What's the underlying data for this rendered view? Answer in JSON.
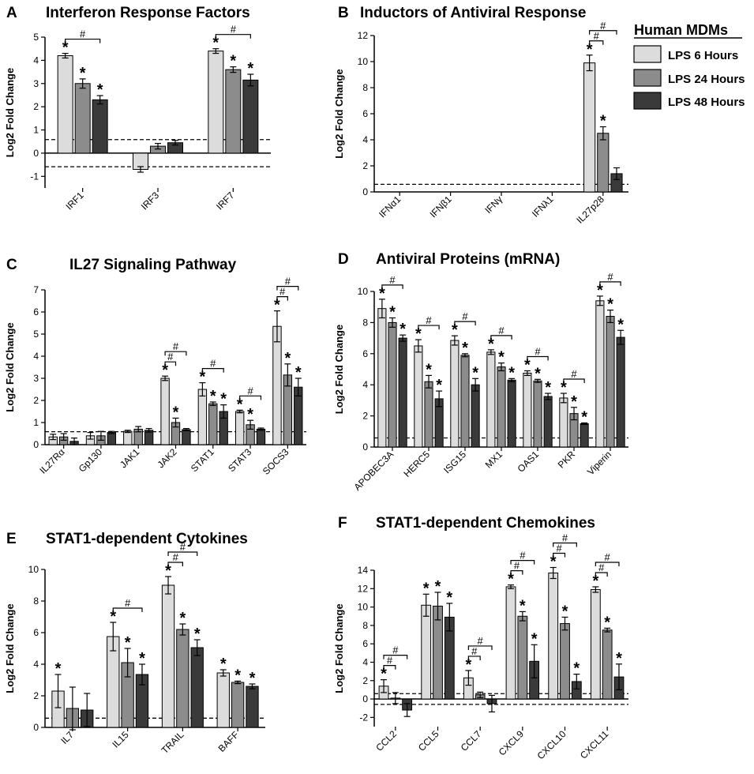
{
  "figure": {
    "legend": {
      "title": "Human MDMs",
      "entries": [
        {
          "label": "LPS 6 Hours",
          "color": "#dcdcdc"
        },
        {
          "label": "LPS 24 Hours",
          "color": "#8c8c8c"
        },
        {
          "label": "LPS 48 Hours",
          "color": "#3a3a3a"
        }
      ]
    },
    "marker_star": "*",
    "marker_hash": "#"
  },
  "chart_data": [
    {
      "type": "bar",
      "letter": "A",
      "title": "Interferon Response Factors",
      "ylabel": "Log2 Fold Change",
      "ylim": [
        -1.5,
        5
      ],
      "yticks": [
        "-1",
        "0",
        "1",
        "2",
        "3",
        "4",
        "5"
      ],
      "ref_lines": [
        0.585,
        -0.585
      ],
      "categories": [
        "IRF1",
        "IRF3",
        "IRF7"
      ],
      "series": [
        {
          "name": "LPS 6 Hours",
          "values": [
            4.2,
            -0.7,
            4.4
          ],
          "errors": [
            0.1,
            0.12,
            0.1
          ],
          "stars": [
            true,
            false,
            true
          ]
        },
        {
          "name": "LPS 24 Hours",
          "values": [
            3.0,
            0.3,
            3.6
          ],
          "errors": [
            0.2,
            0.12,
            0.12
          ],
          "stars": [
            true,
            false,
            true
          ]
        },
        {
          "name": "LPS 48 Hours",
          "values": [
            2.3,
            0.45,
            3.15
          ],
          "errors": [
            0.18,
            0.1,
            0.25
          ],
          "stars": [
            true,
            false,
            true
          ]
        }
      ],
      "hash_brackets": [
        {
          "category": 0,
          "from": 0,
          "to": 2,
          "level": 0
        },
        {
          "category": 2,
          "from": 0,
          "to": 2,
          "level": 0
        }
      ]
    },
    {
      "type": "bar",
      "letter": "B",
      "title": "Inductors of Antiviral Response",
      "ylabel": "Log2 Fold Change",
      "ylim": [
        0,
        12
      ],
      "yticks": [
        "0",
        "2",
        "4",
        "6",
        "8",
        "10",
        "12"
      ],
      "ref_lines": [
        0.585
      ],
      "categories": [
        "IFNα1",
        "IFNβ1",
        "IFNγ",
        "IFNλ1",
        "IL27p28"
      ],
      "series": [
        {
          "name": "LPS 6 Hours",
          "values": [
            0,
            0,
            0,
            0,
            9.9
          ],
          "errors": [
            0,
            0,
            0,
            0,
            0.6
          ],
          "stars": [
            false,
            false,
            false,
            false,
            true
          ]
        },
        {
          "name": "LPS 24 Hours",
          "values": [
            0,
            0,
            0,
            0,
            4.5
          ],
          "errors": [
            0,
            0,
            0,
            0,
            0.5
          ],
          "stars": [
            false,
            false,
            false,
            false,
            true
          ]
        },
        {
          "name": "LPS 48 Hours",
          "values": [
            0,
            0,
            0,
            0,
            1.4
          ],
          "errors": [
            0,
            0,
            0,
            0,
            0.45
          ],
          "stars": [
            false,
            false,
            false,
            false,
            false
          ]
        }
      ],
      "hash_brackets": [
        {
          "category": 4,
          "from": 0,
          "to": 1,
          "level": 0
        },
        {
          "category": 4,
          "from": 0,
          "to": 2,
          "level": 1
        }
      ]
    },
    {
      "type": "bar",
      "letter": "C",
      "title": "IL27 Signaling Pathway",
      "ylabel": "Log2 Fold Change",
      "ylim": [
        0,
        7
      ],
      "yticks": [
        "0",
        "1",
        "2",
        "3",
        "4",
        "5",
        "6",
        "7"
      ],
      "ref_lines": [
        0.585
      ],
      "categories": [
        "IL27Rα",
        "Gp130",
        "JAK1",
        "JAK2",
        "STAT1",
        "STAT3",
        "SOCS3"
      ],
      "series": [
        {
          "name": "LPS 6 Hours",
          "values": [
            0.35,
            0.4,
            0.6,
            3.0,
            2.5,
            1.5,
            5.35
          ],
          "errors": [
            0.12,
            0.15,
            0.05,
            0.1,
            0.3,
            0.06,
            0.7
          ],
          "stars": [
            false,
            false,
            false,
            true,
            true,
            true,
            true
          ]
        },
        {
          "name": "LPS 24 Hours",
          "values": [
            0.35,
            0.4,
            0.7,
            1.0,
            1.85,
            0.9,
            3.15
          ],
          "errors": [
            0.15,
            0.2,
            0.12,
            0.2,
            0.08,
            0.2,
            0.5
          ],
          "stars": [
            false,
            false,
            false,
            true,
            true,
            true,
            true
          ]
        },
        {
          "name": "LPS 48 Hours",
          "values": [
            0.15,
            0.55,
            0.65,
            0.68,
            1.5,
            0.7,
            2.6
          ],
          "errors": [
            0.15,
            0.05,
            0.08,
            0.05,
            0.3,
            0.05,
            0.4
          ],
          "stars": [
            false,
            false,
            false,
            false,
            true,
            false,
            true
          ]
        }
      ],
      "hash_brackets": [
        {
          "category": 3,
          "from": 0,
          "to": 1,
          "level": 0
        },
        {
          "category": 3,
          "from": 0,
          "to": 2,
          "level": 1
        },
        {
          "category": 4,
          "from": 0,
          "to": 2,
          "level": 0
        },
        {
          "category": 5,
          "from": 0,
          "to": 2,
          "level": 0
        },
        {
          "category": 6,
          "from": 0,
          "to": 1,
          "level": 0
        },
        {
          "category": 6,
          "from": 0,
          "to": 2,
          "level": 1
        }
      ]
    },
    {
      "type": "bar",
      "letter": "D",
      "title": "Antiviral Proteins (mRNA)",
      "ylabel": "Log2 Fold Change",
      "ylim": [
        0,
        10
      ],
      "yticks": [
        "0",
        "2",
        "4",
        "6",
        "8",
        "10"
      ],
      "ref_lines": [
        0.585
      ],
      "categories": [
        "APOBEC3A",
        "HERC5",
        "ISG15",
        "MX1",
        "OAS1",
        "PKR",
        "Viperin"
      ],
      "series": [
        {
          "name": "LPS 6 Hours",
          "values": [
            8.9,
            6.5,
            6.85,
            6.1,
            4.75,
            3.15,
            9.4
          ],
          "errors": [
            0.6,
            0.4,
            0.3,
            0.15,
            0.15,
            0.3,
            0.3
          ],
          "stars": [
            true,
            true,
            true,
            true,
            true,
            true,
            true
          ]
        },
        {
          "name": "LPS 24 Hours",
          "values": [
            8.0,
            4.2,
            5.9,
            5.15,
            4.25,
            2.15,
            8.4
          ],
          "errors": [
            0.3,
            0.4,
            0.1,
            0.25,
            0.1,
            0.4,
            0.4
          ],
          "stars": [
            true,
            true,
            true,
            true,
            true,
            true,
            true
          ]
        },
        {
          "name": "LPS 48 Hours",
          "values": [
            7.0,
            3.1,
            4.0,
            4.3,
            3.25,
            1.5,
            7.05
          ],
          "errors": [
            0.2,
            0.5,
            0.4,
            0.1,
            0.2,
            0.05,
            0.45
          ],
          "stars": [
            true,
            true,
            true,
            true,
            true,
            true,
            true
          ]
        }
      ],
      "hash_brackets": [
        {
          "category": 0,
          "from": 0,
          "to": 2,
          "level": 0
        },
        {
          "category": 1,
          "from": 0,
          "to": 2,
          "level": 0
        },
        {
          "category": 2,
          "from": 0,
          "to": 2,
          "level": 0
        },
        {
          "category": 3,
          "from": 0,
          "to": 2,
          "level": 0
        },
        {
          "category": 4,
          "from": 0,
          "to": 2,
          "level": 0
        },
        {
          "category": 5,
          "from": 0,
          "to": 2,
          "level": 0
        },
        {
          "category": 6,
          "from": 0,
          "to": 2,
          "level": 0
        }
      ]
    },
    {
      "type": "bar",
      "letter": "E",
      "title": "STAT1-dependent Cytokines",
      "ylabel": "Log2 Fold Change",
      "ylim": [
        0,
        10
      ],
      "yticks": [
        "0",
        "2",
        "4",
        "6",
        "8",
        "10"
      ],
      "ref_lines": [
        0.585
      ],
      "categories": [
        "IL7",
        "IL15",
        "TRAIL",
        "BAFF"
      ],
      "series": [
        {
          "name": "LPS 6 Hours",
          "values": [
            2.3,
            5.75,
            9.0,
            3.45
          ],
          "errors": [
            1.05,
            0.9,
            0.55,
            0.2
          ],
          "stars": [
            true,
            true,
            true,
            true
          ]
        },
        {
          "name": "LPS 24 Hours",
          "values": [
            1.2,
            4.1,
            6.2,
            2.85
          ],
          "errors": [
            1.35,
            0.9,
            0.35,
            0.08
          ],
          "stars": [
            false,
            true,
            true,
            true
          ]
        },
        {
          "name": "LPS 48 Hours",
          "values": [
            1.1,
            3.35,
            5.05,
            2.6
          ],
          "errors": [
            1.05,
            0.65,
            0.5,
            0.15
          ],
          "stars": [
            false,
            true,
            true,
            true
          ]
        }
      ],
      "hash_brackets": [
        {
          "category": 1,
          "from": 0,
          "to": 2,
          "level": 0
        },
        {
          "category": 2,
          "from": 0,
          "to": 1,
          "level": 0
        },
        {
          "category": 2,
          "from": 0,
          "to": 2,
          "level": 1
        }
      ]
    },
    {
      "type": "bar",
      "letter": "F",
      "title": "STAT1-dependent Chemokines",
      "ylabel": "Log2 Fold Change",
      "ylim": [
        -3,
        14
      ],
      "yticks": [
        "-2",
        "0",
        "2",
        "4",
        "6",
        "8",
        "10",
        "12",
        "14"
      ],
      "ref_lines": [
        0.585,
        -0.585
      ],
      "categories": [
        "CCL2",
        "CCL5",
        "CCL7",
        "CXCL9",
        "CXCL10",
        "CXCL11"
      ],
      "series": [
        {
          "name": "LPS 6 Hours",
          "values": [
            1.4,
            10.2,
            2.3,
            12.2,
            13.7,
            11.9
          ],
          "errors": [
            0.7,
            1.2,
            0.8,
            0.2,
            0.6,
            0.3
          ],
          "stars": [
            true,
            true,
            true,
            true,
            true,
            true
          ]
        },
        {
          "name": "LPS 24 Hours",
          "values": [
            0.1,
            10.1,
            0.45,
            9.0,
            8.2,
            7.5
          ],
          "errors": [
            0.6,
            1.5,
            0.3,
            0.5,
            0.7,
            0.2
          ],
          "stars": [
            false,
            true,
            false,
            true,
            true,
            true
          ]
        },
        {
          "name": "LPS 48 Hours",
          "values": [
            -1.2,
            8.9,
            -0.5,
            4.1,
            1.9,
            2.4
          ],
          "errors": [
            0.7,
            1.5,
            0.9,
            1.8,
            0.8,
            1.4
          ],
          "stars": [
            false,
            true,
            false,
            true,
            true,
            true
          ]
        }
      ],
      "hash_brackets": [
        {
          "category": 0,
          "from": 0,
          "to": 1,
          "level": 0
        },
        {
          "category": 0,
          "from": 0,
          "to": 2,
          "level": 1
        },
        {
          "category": 2,
          "from": 0,
          "to": 1,
          "level": 0
        },
        {
          "category": 2,
          "from": 0,
          "to": 2,
          "level": 1
        },
        {
          "category": 3,
          "from": 0,
          "to": 1,
          "level": 0
        },
        {
          "category": 3,
          "from": 0,
          "to": 2,
          "level": 1
        },
        {
          "category": 4,
          "from": 0,
          "to": 1,
          "level": 0
        },
        {
          "category": 4,
          "from": 0,
          "to": 2,
          "level": 1
        },
        {
          "category": 5,
          "from": 0,
          "to": 1,
          "level": 0
        },
        {
          "category": 5,
          "from": 0,
          "to": 2,
          "level": 1
        }
      ]
    }
  ]
}
